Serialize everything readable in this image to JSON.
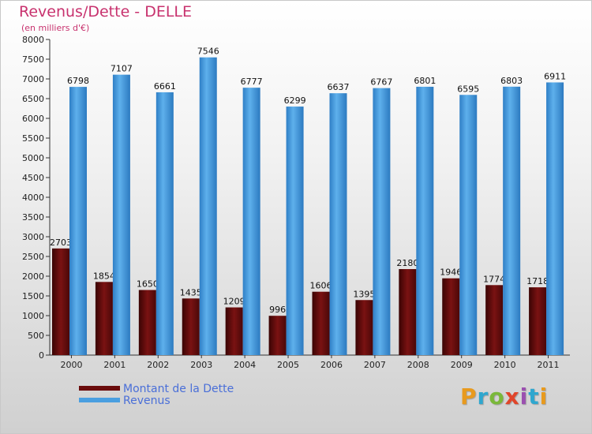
{
  "header": {
    "title": "Revenus/Dette - DELLE",
    "subtitle": "(en milliers d'€)"
  },
  "chart_data": {
    "type": "bar",
    "title": "Revenus/Dette - DELLE",
    "ylabel": "(en milliers d'€)",
    "xlabel": "",
    "ylim": [
      0,
      8000
    ],
    "yticks": [
      0,
      500,
      1000,
      1500,
      2000,
      2500,
      3000,
      3500,
      4000,
      4500,
      5000,
      5500,
      6000,
      6500,
      7000,
      7500,
      8000
    ],
    "categories": [
      "2000",
      "2001",
      "2002",
      "2003",
      "2004",
      "2005",
      "2006",
      "2007",
      "2008",
      "2009",
      "2010",
      "2011"
    ],
    "series": [
      {
        "name": "Montant de la Dette",
        "color": "#6a0c0c",
        "values": [
          2703,
          1854,
          1650,
          1435,
          1209,
          996,
          1606,
          1395,
          2180,
          1946,
          1774,
          1718
        ]
      },
      {
        "name": "Revenus",
        "color": "#4a9fe0",
        "values": [
          6798,
          7107,
          6661,
          7546,
          6777,
          6299,
          6637,
          6767,
          6801,
          6595,
          6803,
          6911
        ]
      }
    ],
    "legend": "bottom-left"
  },
  "legend": {
    "items": [
      {
        "label": "Montant de la Dette",
        "color": "#6a0c0c"
      },
      {
        "label": "Revenus",
        "color": "#4a9fe0"
      }
    ]
  },
  "logo": {
    "letters": [
      "P",
      "r",
      "o",
      "x",
      "i",
      "t",
      "i"
    ],
    "colors": [
      "#e89a1e",
      "#2fa7cf",
      "#7ab83a",
      "#e0452a",
      "#9b4fb0",
      "#2fa7cf",
      "#e89a1e"
    ]
  }
}
